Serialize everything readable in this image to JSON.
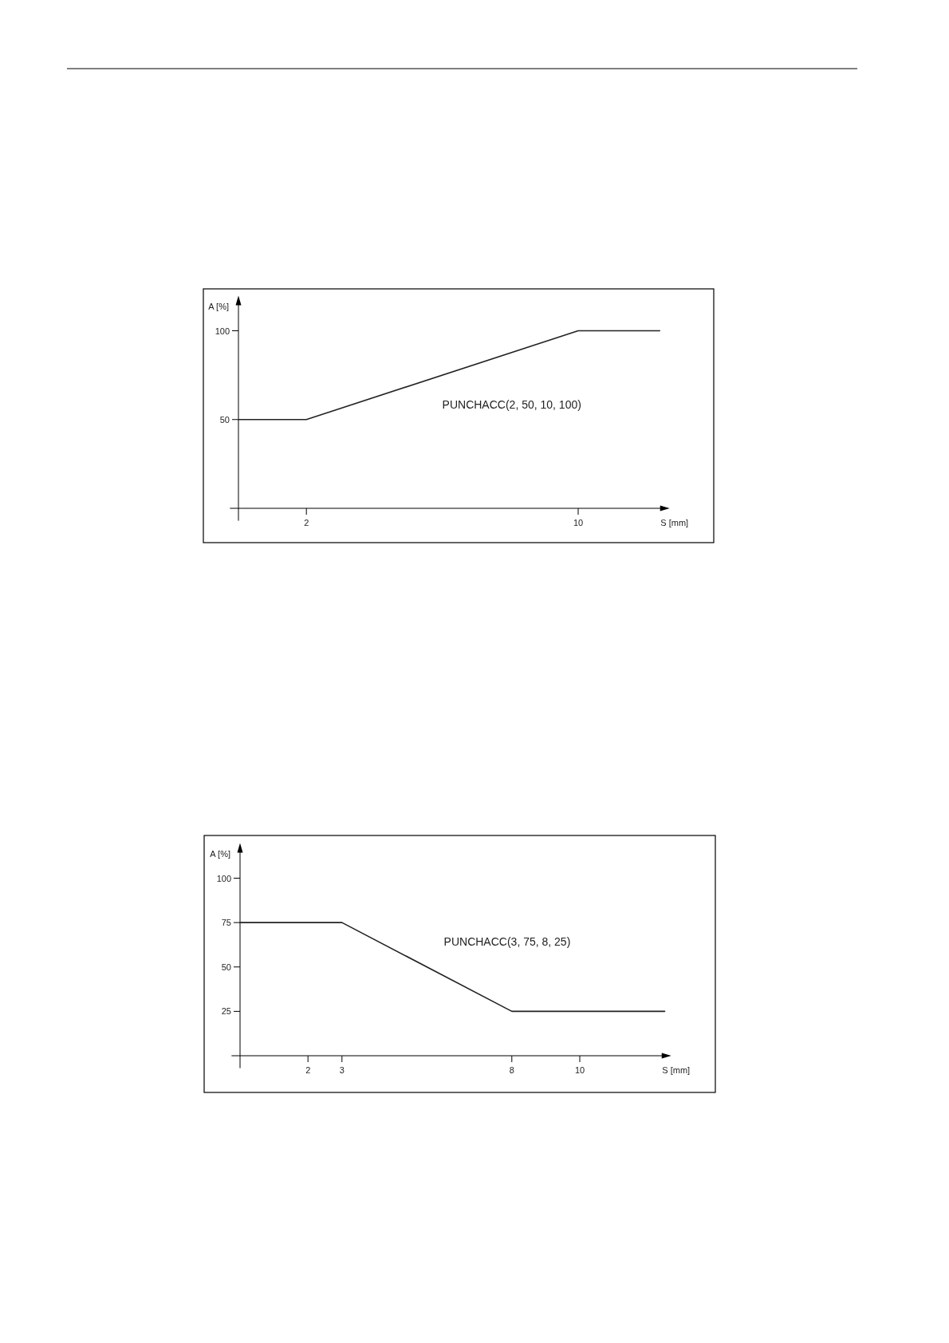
{
  "chart_data": [
    {
      "type": "line",
      "xlabel": "S [mm]",
      "ylabel": "A [%]",
      "xlim": [
        -0.25,
        12.6
      ],
      "ylim": [
        -7,
        118
      ],
      "xticks": [
        2,
        10
      ],
      "yticks": [
        50,
        100
      ],
      "series": [
        {
          "x": [
            0,
            2,
            10,
            12.4
          ],
          "values": [
            50,
            50,
            100,
            100
          ],
          "color": "#222222"
        }
      ],
      "annotations": [
        "PUNCHACC(2, 50, 10, 100)"
      ]
    },
    {
      "type": "line",
      "xlabel": "S [mm]",
      "ylabel": "A [%]",
      "xlim": [
        -0.25,
        12.6
      ],
      "ylim": [
        -7,
        118
      ],
      "xticks": [
        2,
        3,
        8,
        10
      ],
      "yticks": [
        25,
        50,
        75,
        100
      ],
      "series": [
        {
          "x": [
            0,
            3,
            8,
            12.5
          ],
          "values": [
            75,
            75,
            25,
            25
          ],
          "color": "#222222"
        }
      ],
      "annotations": [
        "PUNCHACC(3, 75, 8, 25)"
      ]
    }
  ]
}
